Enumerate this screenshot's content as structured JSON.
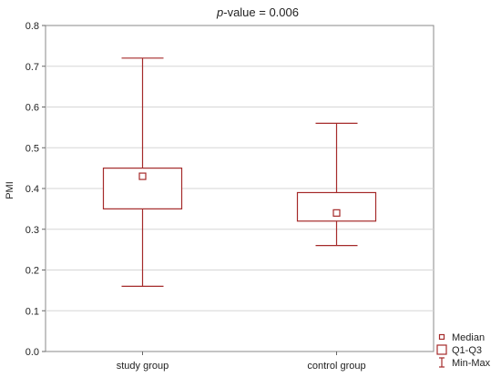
{
  "chart_data": {
    "type": "boxplot",
    "title_italic": "p",
    "title_rest": "-value = 0.006",
    "ylabel": "PMI",
    "xlabel": "",
    "ylim": [
      0,
      0.8
    ],
    "yticks": [
      0.0,
      0.1,
      0.2,
      0.3,
      0.4,
      0.5,
      0.6,
      0.7,
      0.8
    ],
    "ytick_labels": [
      "0.0",
      "0.1",
      "0.2",
      "0.3",
      "0.4",
      "0.5",
      "0.6",
      "0.7",
      "0.8"
    ],
    "grid": true,
    "legend_position": "bottom-right",
    "color": "#a52a2a",
    "categories": [
      "study group",
      "control group"
    ],
    "boxes": [
      {
        "category": "study group",
        "min": 0.16,
        "q1": 0.35,
        "median": 0.43,
        "q3": 0.45,
        "max": 0.72
      },
      {
        "category": "control group",
        "min": 0.26,
        "q1": 0.32,
        "median": 0.34,
        "q3": 0.39,
        "max": 0.56
      }
    ],
    "legend": [
      {
        "key": "median",
        "label": "Median"
      },
      {
        "key": "box",
        "label": "Q1-Q3"
      },
      {
        "key": "whisker",
        "label": "Min-Max"
      }
    ]
  }
}
